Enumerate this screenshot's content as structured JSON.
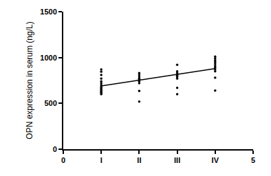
{
  "chart_data": {
    "type": "scatter",
    "y_label": "OPN expression in serum (ng/L)",
    "xlim": [
      0,
      5
    ],
    "xticks": [
      0,
      {
        "value": 1,
        "label": "I"
      },
      {
        "value": 2,
        "label": "II"
      },
      {
        "value": 3,
        "label": "III"
      },
      {
        "value": 4,
        "label": "IV"
      },
      5
    ],
    "ylim": [
      0,
      1500
    ],
    "yticks": [
      0,
      500,
      1000,
      1500
    ],
    "grid": false,
    "series": [
      {
        "type": "scatter",
        "color": "#000000",
        "marker": "circle",
        "x": [
          1,
          1,
          1,
          1,
          1,
          1,
          1,
          1,
          1,
          1,
          1,
          1,
          1,
          1,
          1,
          2,
          2,
          2,
          2,
          2,
          2,
          2,
          2,
          2,
          2,
          3,
          3,
          3,
          3,
          3,
          3,
          3,
          3,
          3,
          4,
          4,
          4,
          4,
          4,
          4,
          4,
          4,
          4,
          4,
          4
        ],
        "values": [
          870,
          845,
          810,
          770,
          740,
          720,
          700,
          680,
          665,
          650,
          640,
          630,
          620,
          610,
          600,
          830,
          810,
          790,
          770,
          760,
          750,
          740,
          720,
          635,
          520,
          920,
          850,
          830,
          810,
          800,
          790,
          770,
          670,
          600,
          1010,
          990,
          970,
          950,
          930,
          910,
          890,
          870,
          850,
          780,
          640
        ]
      },
      {
        "type": "line",
        "color": "#000000",
        "line_style": "solid",
        "x": [
          1,
          4
        ],
        "values": [
          690,
          880
        ]
      }
    ]
  }
}
